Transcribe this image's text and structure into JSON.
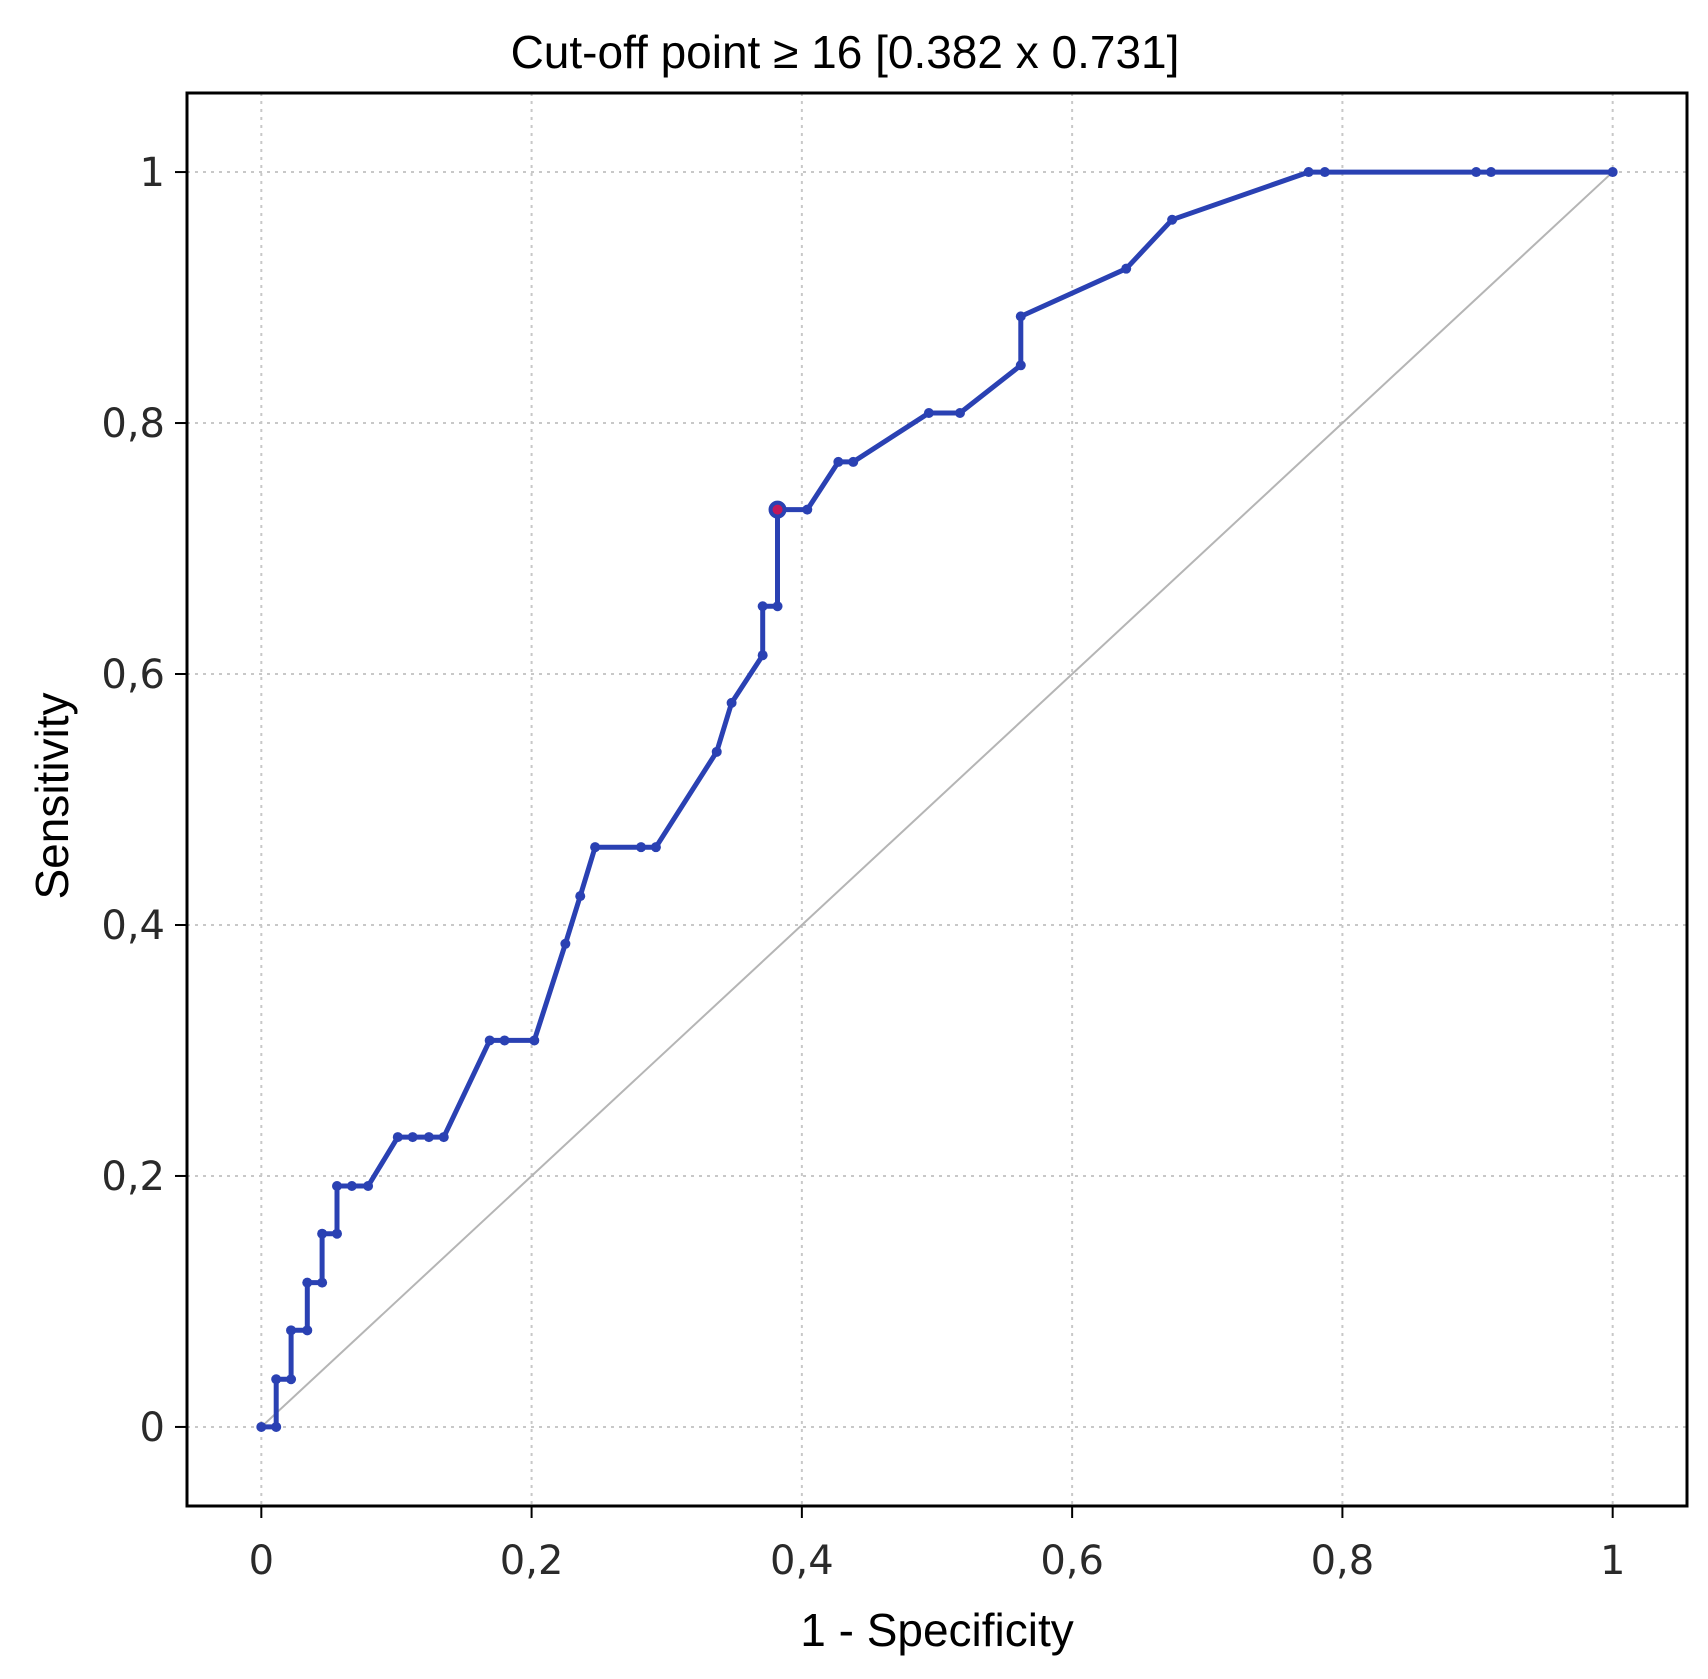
{
  "chart_data": {
    "type": "line",
    "title": "Cut-off point ≥ 16 [0.382 x 0.731]",
    "xlabel": "1 - Specificity",
    "ylabel": "Sensitivity",
    "xlim": [
      -0.055,
      1.055
    ],
    "ylim": [
      -0.063,
      1.063
    ],
    "xticks": [
      0,
      0.2,
      0.4,
      0.6,
      0.8,
      1
    ],
    "xtick_labels": [
      "0",
      "0,2",
      "0,4",
      "0,6",
      "0,8",
      "1"
    ],
    "yticks": [
      0,
      0.2,
      0.4,
      0.6,
      0.8,
      1
    ],
    "ytick_labels": [
      "0",
      "0,2",
      "0,4",
      "0,6",
      "0,8",
      "1"
    ],
    "grid": true,
    "legend": "none",
    "reference_line": {
      "x": [
        0,
        1
      ],
      "y": [
        0,
        1
      ],
      "color": "#b5b5b5"
    },
    "cutoff_point": {
      "x": 0.382,
      "y": 0.731,
      "color": "#c2185b"
    },
    "series": [
      {
        "color": "#2a41b3",
        "x": [
          0,
          0.011,
          0.011,
          0.022,
          0.022,
          0.034,
          0.034,
          0.045,
          0.045,
          0.056,
          0.056,
          0.067,
          0.079,
          0.101,
          0.112,
          0.124,
          0.135,
          0.169,
          0.18,
          0.202,
          0.225,
          0.236,
          0.247,
          0.281,
          0.292,
          0.337,
          0.348,
          0.371,
          0.371,
          0.382,
          0.382,
          0.404,
          0.427,
          0.438,
          0.494,
          0.517,
          0.562,
          0.562,
          0.64,
          0.674,
          0.775,
          0.787,
          0.899,
          0.91,
          1
        ],
        "y": [
          0,
          0,
          0.038,
          0.038,
          0.077,
          0.077,
          0.115,
          0.115,
          0.154,
          0.154,
          0.192,
          0.192,
          0.192,
          0.231,
          0.231,
          0.231,
          0.231,
          0.308,
          0.308,
          0.308,
          0.385,
          0.423,
          0.462,
          0.462,
          0.462,
          0.538,
          0.577,
          0.615,
          0.654,
          0.654,
          0.731,
          0.731,
          0.769,
          0.769,
          0.808,
          0.808,
          0.846,
          0.885,
          0.923,
          0.962,
          1,
          1,
          1,
          1,
          1
        ]
      }
    ]
  }
}
